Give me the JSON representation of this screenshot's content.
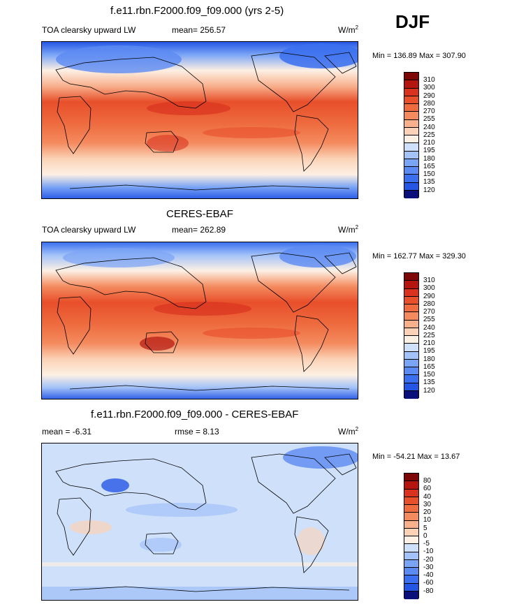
{
  "season": "DJF",
  "colors": {
    "abs_scale": [
      "#0a0f7a",
      "#1d3fd6",
      "#2456e6",
      "#3a6fef",
      "#5b8af2",
      "#7aa4f5",
      "#a3c2f8",
      "#cfe0fb",
      "#fdf0e4",
      "#fbd2b6",
      "#f8b08d",
      "#f48b5f",
      "#ee6c3f",
      "#e84f2b",
      "#d93320",
      "#b4160f",
      "#7d0606"
    ],
    "diff_scale": [
      "#0a0f7a",
      "#1d3fd6",
      "#2456e6",
      "#3a6fef",
      "#5b8af2",
      "#7aa4f5",
      "#a3c2f8",
      "#cfe0fb",
      "#fdf0e4",
      "#fbd2b6",
      "#f8b08d",
      "#f48b5f",
      "#ee6c3f",
      "#e84f2b",
      "#d93320",
      "#b4160f",
      "#7d0606"
    ]
  },
  "panels": [
    {
      "title": "f.e11.rbn.F2000.f09_f09.000 (yrs 2-5)",
      "left_label": "TOA clearsky upward LW",
      "center_label": "mean= 256.57",
      "unit": "W/m",
      "unit_sup": "2",
      "minmax": "Min = 136.89 Max = 307.90",
      "labels": [
        "310",
        "300",
        "290",
        "280",
        "270",
        "255",
        "240",
        "225",
        "210",
        "195",
        "180",
        "165",
        "150",
        "135",
        "120"
      ]
    },
    {
      "title": "CERES-EBAF",
      "left_label": "TOA clearsky upward LW",
      "center_label": "mean= 262.89",
      "unit": "W/m",
      "unit_sup": "2",
      "minmax": "Min = 162.77 Max = 329.30",
      "labels": [
        "310",
        "300",
        "290",
        "280",
        "270",
        "255",
        "240",
        "225",
        "210",
        "195",
        "180",
        "165",
        "150",
        "135",
        "120"
      ]
    },
    {
      "title": "f.e11.rbn.F2000.f09_f09.000 - CERES-EBAF",
      "left_label": "mean =  -6.31",
      "center_label": "rmse =   8.13",
      "unit": "W/m",
      "unit_sup": "2",
      "minmax": "Min = -54.21 Max =  13.67",
      "labels": [
        "80",
        "60",
        "40",
        "30",
        "20",
        "10",
        "5",
        "0",
        "-5",
        "-10",
        "-20",
        "-30",
        "-40",
        "-60",
        "-80"
      ]
    }
  ]
}
